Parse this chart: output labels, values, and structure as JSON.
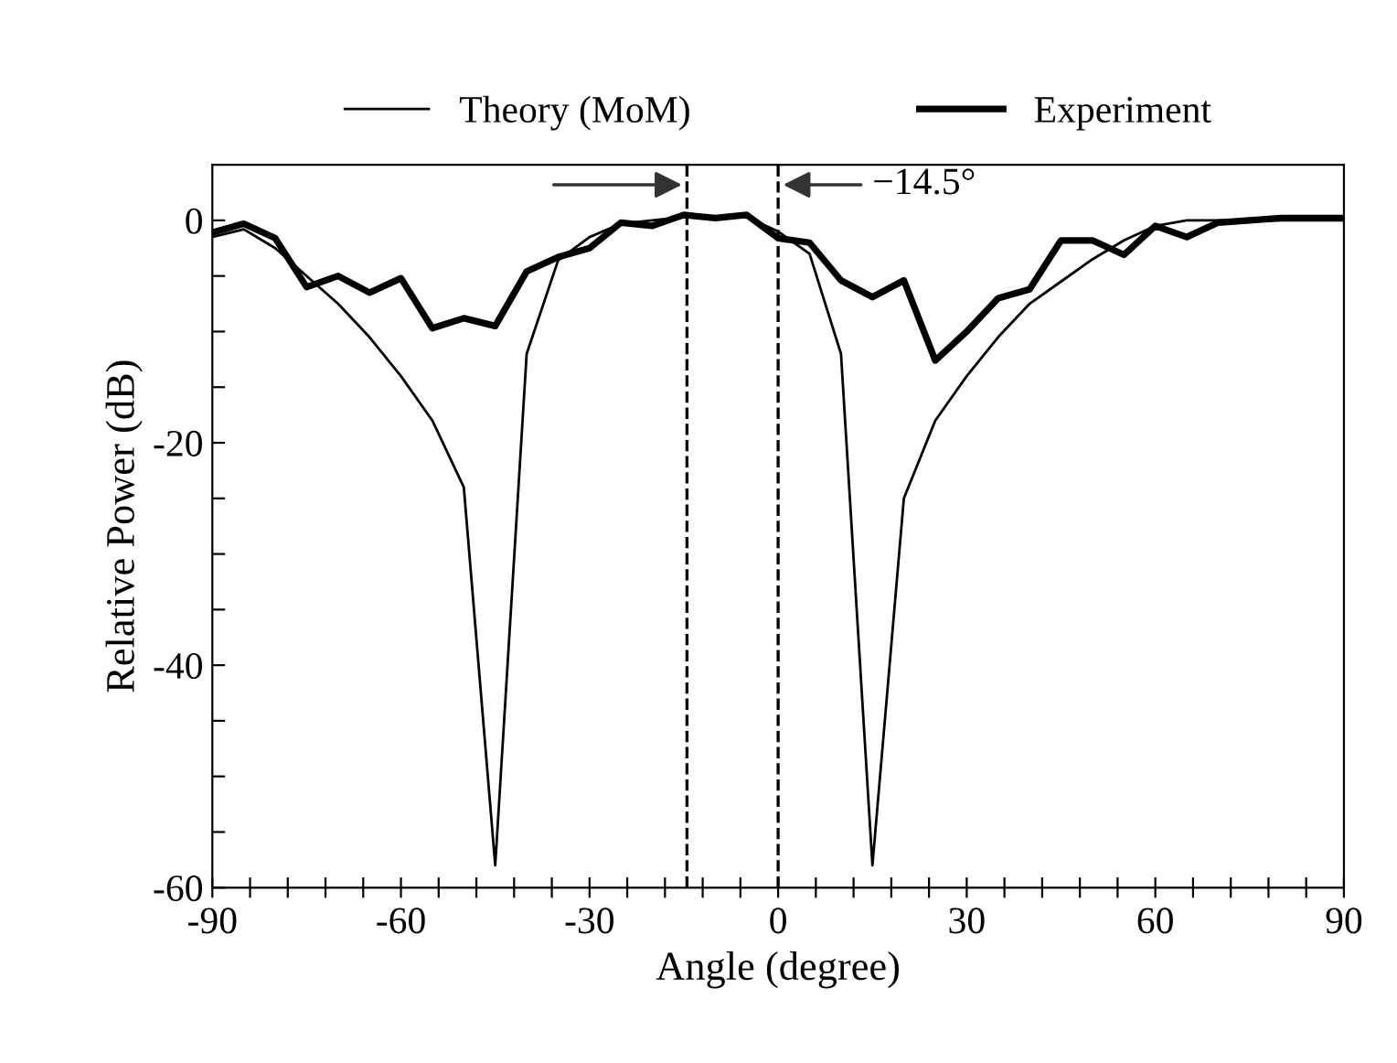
{
  "chart_data": {
    "type": "line",
    "xlabel": "Angle (degree)",
    "ylabel": "Relative Power (dB)",
    "xlim": [
      -90,
      90
    ],
    "ylim": [
      -60,
      5
    ],
    "xticks": [
      -90,
      {
        "value": -84,
        "label": null
      },
      {
        "value": -78,
        "label": null
      },
      {
        "value": -72,
        "label": null
      },
      {
        "value": -66,
        "label": null
      },
      -60,
      {
        "value": -54,
        "label": null
      },
      {
        "value": -48,
        "label": null
      },
      {
        "value": -42,
        "label": null
      },
      {
        "value": -36,
        "label": null
      },
      -30,
      {
        "value": -24,
        "label": null
      },
      {
        "value": -18,
        "label": null
      },
      {
        "value": -12,
        "label": null
      },
      {
        "value": -6,
        "label": null
      },
      0,
      {
        "value": 6,
        "label": null
      },
      {
        "value": 12,
        "label": null
      },
      {
        "value": 18,
        "label": null
      },
      {
        "value": 24,
        "label": null
      },
      30,
      {
        "value": 36,
        "label": null
      },
      {
        "value": 42,
        "label": null
      },
      {
        "value": 48,
        "label": null
      },
      {
        "value": 54,
        "label": null
      },
      60,
      {
        "value": 66,
        "label": null
      },
      {
        "value": 72,
        "label": null
      },
      {
        "value": 78,
        "label": null
      },
      {
        "value": 84,
        "label": null
      },
      90
    ],
    "yticks": [
      -60,
      {
        "value": -55,
        "label": null
      },
      {
        "value": -50,
        "label": null
      },
      {
        "value": -45,
        "label": null
      },
      -40,
      {
        "value": -35,
        "label": null
      },
      {
        "value": -30,
        "label": null
      },
      {
        "value": -25,
        "label": null
      },
      -20,
      {
        "value": -15,
        "label": null
      },
      {
        "value": -10,
        "label": null
      },
      {
        "value": -5,
        "label": null
      },
      0
    ],
    "grid": false,
    "legend": "top",
    "marker": "none",
    "line_style": "solid",
    "series": [
      {
        "name": "Theory (MoM)",
        "color": "#000000",
        "x": [
          -90,
          -85,
          -80,
          -75,
          -70,
          -65,
          -60,
          -55,
          -50,
          -45,
          -40,
          -35,
          -30,
          -25,
          -20,
          -15,
          -10,
          -5,
          0,
          5,
          10,
          15,
          20,
          25,
          30,
          35,
          40,
          45,
          50,
          55,
          60,
          65,
          70,
          80,
          90
        ],
        "values": [
          -1.5,
          -0.8,
          -2.5,
          -5,
          -7.5,
          -10.5,
          -14,
          -18,
          -24,
          -58,
          -12,
          -3.6,
          -1.5,
          -0.3,
          0,
          0.3,
          0.3,
          0.3,
          -1,
          -3,
          -12,
          -58,
          -25,
          -18,
          -14,
          -10.5,
          -7.5,
          -5.5,
          -3.5,
          -1.8,
          -0.5,
          0,
          0,
          0,
          0
        ]
      },
      {
        "name": "Experiment",
        "color": "#000000",
        "x": [
          -90,
          -85,
          -80,
          -75,
          -70,
          -65,
          -60,
          -55,
          -50,
          -45,
          -40,
          -35,
          -30,
          -25,
          -20,
          -15,
          -10,
          -5,
          0,
          5,
          10,
          15,
          20,
          25,
          30,
          35,
          40,
          45,
          50,
          55,
          60,
          65,
          70,
          75,
          80,
          85,
          90
        ],
        "values": [
          -1.1,
          -0.3,
          -1.6,
          -6,
          -5,
          -6.5,
          -5.2,
          -9.7,
          -8.8,
          -9.5,
          -4.6,
          -3.3,
          -2.5,
          -0.2,
          -0.5,
          0.5,
          0.2,
          0.5,
          -1.6,
          -2,
          -5.4,
          -6.9,
          -5.4,
          -12.6,
          -10,
          -7,
          -6.2,
          -1.8,
          -1.8,
          -3.1,
          -0.5,
          -1.5,
          -0.2,
          0,
          0.2,
          0.2,
          0.2
        ]
      }
    ],
    "ref_lines": [
      {
        "axis": "x",
        "value": -14.5,
        "line_style": "dashed",
        "color": "#000000"
      },
      {
        "axis": "x",
        "value": 0,
        "line_style": "dashed",
        "color": "#000000"
      }
    ],
    "annotations": [
      "−14.5°"
    ]
  }
}
